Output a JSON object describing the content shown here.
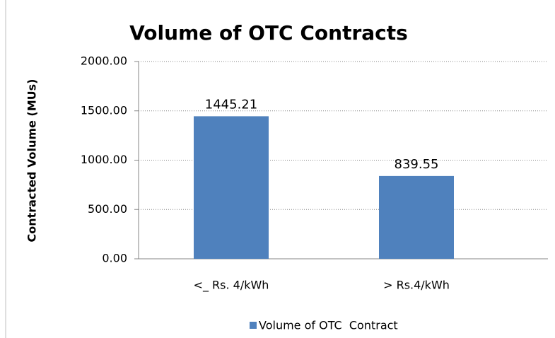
{
  "chart_data": {
    "type": "bar",
    "title": "Volume of OTC Contracts",
    "y_label": "Contracted Volume (MUs)",
    "categories": [
      "<_ Rs. 4/kWh",
      "> Rs.4/kWh"
    ],
    "series": [
      {
        "name": "Volume of OTC  Contract",
        "color": "#4f81bd",
        "values": [
          1445.21,
          839.55
        ]
      }
    ],
    "ylim": [
      0,
      2000
    ],
    "yticks": [
      {
        "value": 0,
        "label": "0.00"
      },
      {
        "value": 500,
        "label": "500.00"
      },
      {
        "value": 1000,
        "label": "1000.00"
      },
      {
        "value": 1500,
        "label": "1500.00"
      },
      {
        "value": 2000,
        "label": "2000.00"
      }
    ],
    "grid": true,
    "legend": "bottom"
  }
}
